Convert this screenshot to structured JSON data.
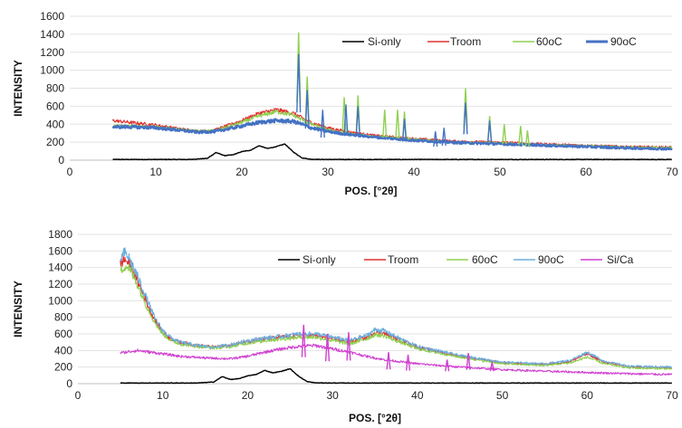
{
  "chart_data": [
    {
      "type": "line",
      "xlabel": "POS. [°2θ]",
      "ylabel": "INTENSITY",
      "xlim": [
        0,
        70
      ],
      "ylim": [
        0,
        1600
      ],
      "xticks": [
        0,
        10,
        20,
        30,
        40,
        50,
        60,
        70
      ],
      "yticks": [
        0,
        200,
        400,
        600,
        800,
        1000,
        1200,
        1400,
        1600
      ],
      "grid": true,
      "legend": "top-right",
      "series": [
        {
          "name": "Si-only",
          "color": "#000000",
          "x": [
            5,
            10,
            14,
            16,
            17,
            18,
            19,
            20,
            21,
            22,
            23,
            24,
            25,
            26,
            27,
            28,
            30,
            35,
            40,
            50,
            60,
            70
          ],
          "y": [
            8,
            8,
            8,
            20,
            85,
            50,
            60,
            95,
            110,
            160,
            130,
            150,
            180,
            90,
            25,
            10,
            8,
            8,
            8,
            8,
            8,
            8
          ]
        },
        {
          "name": "Troom",
          "color": "#e03030",
          "x": [
            5,
            7,
            10,
            12,
            15,
            17,
            20,
            22,
            24,
            26,
            27,
            28,
            30,
            32,
            35,
            40,
            45,
            50,
            55,
            60,
            65,
            70
          ],
          "y": [
            440,
            420,
            390,
            360,
            320,
            340,
            440,
            520,
            560,
            520,
            470,
            420,
            360,
            320,
            280,
            240,
            210,
            200,
            180,
            165,
            150,
            145
          ]
        },
        {
          "name": "60oC",
          "color": "#90d050",
          "x": [
            5,
            7,
            10,
            12,
            15,
            17,
            20,
            22,
            24,
            26,
            27,
            28,
            30,
            32,
            35,
            40,
            45,
            50,
            55,
            60,
            65,
            70
          ],
          "y": [
            380,
            380,
            370,
            350,
            320,
            330,
            420,
            490,
            540,
            500,
            450,
            400,
            340,
            300,
            270,
            230,
            200,
            190,
            170,
            160,
            145,
            140
          ]
        },
        {
          "name": "90oC",
          "color": "#4472c4",
          "x": [
            5,
            7,
            10,
            12,
            15,
            17,
            20,
            22,
            24,
            26,
            27,
            28,
            30,
            32,
            35,
            40,
            45,
            50,
            55,
            60,
            65,
            70
          ],
          "y": [
            370,
            370,
            360,
            340,
            310,
            320,
            380,
            420,
            440,
            430,
            400,
            360,
            320,
            290,
            260,
            220,
            195,
            180,
            165,
            150,
            135,
            125
          ]
        }
      ],
      "peaks": [
        {
          "x": 26.6,
          "y": 1420,
          "color": "#90d050"
        },
        {
          "x": 26.6,
          "y": 1180,
          "color": "#4472c4"
        },
        {
          "x": 27.6,
          "y": 930,
          "color": "#90d050"
        },
        {
          "x": 27.6,
          "y": 780,
          "color": "#4472c4"
        },
        {
          "x": 29.4,
          "y": 560,
          "color": "#4472c4"
        },
        {
          "x": 31.9,
          "y": 700,
          "color": "#90d050"
        },
        {
          "x": 32.1,
          "y": 620,
          "color": "#4472c4"
        },
        {
          "x": 33.5,
          "y": 720,
          "color": "#90d050"
        },
        {
          "x": 33.5,
          "y": 600,
          "color": "#4472c4"
        },
        {
          "x": 36.6,
          "y": 560,
          "color": "#90d050"
        },
        {
          "x": 38.1,
          "y": 560,
          "color": "#90d050"
        },
        {
          "x": 38.9,
          "y": 540,
          "color": "#90d050"
        },
        {
          "x": 38.9,
          "y": 460,
          "color": "#4472c4"
        },
        {
          "x": 42.5,
          "y": 320,
          "color": "#4472c4"
        },
        {
          "x": 43.5,
          "y": 360,
          "color": "#4472c4"
        },
        {
          "x": 46.0,
          "y": 800,
          "color": "#90d050"
        },
        {
          "x": 46.0,
          "y": 640,
          "color": "#4472c4"
        },
        {
          "x": 48.8,
          "y": 490,
          "color": "#90d050"
        },
        {
          "x": 48.8,
          "y": 440,
          "color": "#4472c4"
        },
        {
          "x": 50.5,
          "y": 400,
          "color": "#90d050"
        },
        {
          "x": 52.4,
          "y": 380,
          "color": "#90d050"
        },
        {
          "x": 53.2,
          "y": 330,
          "color": "#90d050"
        }
      ]
    },
    {
      "type": "line",
      "xlabel": "POS. [°2θ]",
      "ylabel": "INTENSITY",
      "xlim": [
        0,
        70
      ],
      "ylim": [
        0,
        1800
      ],
      "xticks": [
        0,
        10,
        20,
        30,
        40,
        50,
        60,
        70
      ],
      "yticks": [
        0,
        200,
        400,
        600,
        800,
        1000,
        1200,
        1400,
        1600,
        1800
      ],
      "grid": true,
      "legend": "top-right",
      "series": [
        {
          "name": "Si-only",
          "color": "#000000",
          "x": [
            5,
            10,
            14,
            16,
            17,
            18,
            19,
            20,
            21,
            22,
            23,
            24,
            25,
            26,
            27,
            28,
            30,
            35,
            40,
            50,
            60,
            70
          ],
          "y": [
            8,
            8,
            8,
            20,
            85,
            50,
            60,
            95,
            110,
            160,
            130,
            150,
            180,
            90,
            25,
            10,
            8,
            8,
            8,
            8,
            8,
            8
          ]
        },
        {
          "name": "Troom",
          "color": "#e03030",
          "x": [
            5,
            5.5,
            6,
            7,
            8,
            9,
            10,
            11,
            12,
            14,
            16,
            18,
            20,
            22,
            24,
            26,
            28,
            30,
            32,
            34,
            35,
            36,
            38,
            40,
            45,
            50,
            55,
            58,
            60,
            62,
            65,
            70
          ],
          "y": [
            1450,
            1500,
            1450,
            1250,
            1000,
            780,
            620,
            540,
            500,
            460,
            440,
            460,
            510,
            540,
            560,
            580,
            580,
            540,
            500,
            560,
            620,
            610,
            520,
            440,
            330,
            250,
            230,
            270,
            360,
            260,
            200,
            190
          ]
        },
        {
          "name": "60oC",
          "color": "#90d050",
          "x": [
            5,
            5.5,
            6,
            7,
            8,
            9,
            10,
            11,
            12,
            14,
            16,
            18,
            20,
            22,
            24,
            26,
            28,
            30,
            32,
            34,
            35,
            36,
            38,
            40,
            45,
            50,
            55,
            58,
            60,
            62,
            65,
            70
          ],
          "y": [
            1350,
            1420,
            1400,
            1200,
            960,
            750,
            600,
            520,
            480,
            450,
            430,
            450,
            490,
            520,
            540,
            560,
            560,
            520,
            480,
            540,
            590,
            580,
            500,
            420,
            320,
            240,
            220,
            250,
            320,
            240,
            190,
            180
          ]
        },
        {
          "name": "90oC",
          "color": "#6aaedc",
          "x": [
            5,
            5.5,
            6,
            7,
            8,
            9,
            10,
            11,
            12,
            14,
            16,
            18,
            20,
            22,
            24,
            26,
            28,
            30,
            32,
            34,
            35,
            36,
            38,
            40,
            45,
            50,
            55,
            58,
            60,
            62,
            65,
            70
          ],
          "y": [
            1500,
            1580,
            1520,
            1300,
            1050,
            800,
            640,
            550,
            500,
            460,
            440,
            470,
            520,
            550,
            570,
            600,
            600,
            560,
            520,
            580,
            650,
            640,
            540,
            450,
            340,
            260,
            240,
            280,
            380,
            270,
            210,
            200
          ]
        },
        {
          "name": "Si/Ca",
          "color": "#d040d0",
          "x": [
            5,
            7,
            10,
            12,
            15,
            18,
            20,
            22,
            24,
            26,
            28,
            30,
            32,
            34,
            36,
            40,
            45,
            50,
            55,
            60,
            65,
            70
          ],
          "y": [
            370,
            400,
            360,
            330,
            310,
            300,
            330,
            380,
            420,
            450,
            460,
            420,
            380,
            330,
            290,
            240,
            200,
            170,
            150,
            135,
            120,
            110
          ]
        }
      ],
      "peaks": [
        {
          "x": 26.6,
          "y": 710,
          "color": "#d040d0"
        },
        {
          "x": 29.4,
          "y": 600,
          "color": "#d040d0"
        },
        {
          "x": 31.9,
          "y": 620,
          "color": "#d040d0"
        },
        {
          "x": 36.6,
          "y": 380,
          "color": "#d040d0"
        },
        {
          "x": 38.9,
          "y": 350,
          "color": "#d040d0"
        },
        {
          "x": 43.5,
          "y": 290,
          "color": "#d040d0"
        },
        {
          "x": 46.0,
          "y": 370,
          "color": "#d040d0"
        },
        {
          "x": 48.8,
          "y": 260,
          "color": "#d040d0"
        }
      ]
    }
  ]
}
